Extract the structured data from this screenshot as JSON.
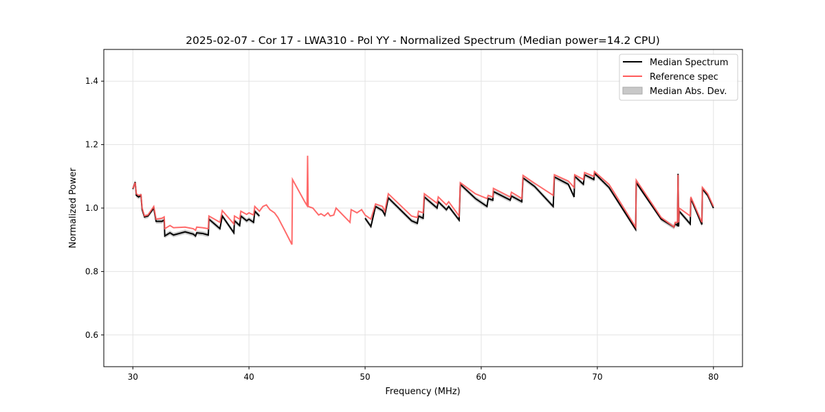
{
  "chart_data": {
    "type": "line",
    "title": "2025-02-07 - Cor 17 - LWA310 - Pol YY - Normalized Spectrum (Median power=14.2 CPU)",
    "xlabel": "Frequency (MHz)",
    "ylabel": "Normalized Power",
    "xlim": [
      27.5,
      82.5
    ],
    "ylim": [
      0.5,
      1.5
    ],
    "xticks": [
      30,
      40,
      50,
      60,
      70,
      80
    ],
    "xtick_labels": [
      "30",
      "40",
      "50",
      "60",
      "70",
      "80"
    ],
    "yticks": [
      0.6,
      0.8,
      1.0,
      1.2,
      1.4
    ],
    "ytick_labels": [
      "0.6",
      "0.8",
      "1.0",
      "1.2",
      "1.4"
    ],
    "grid": true,
    "legend_position": "top-right",
    "legend": [
      "Median Spectrum",
      "Reference spec",
      "Median Abs. Dev."
    ],
    "colors": {
      "median": "#000000",
      "reference": "#ff5a5a",
      "mad": "#bdbdbd"
    },
    "mad_halfwidth": 0.007,
    "series": [
      {
        "name": "Reference spec",
        "points": [
          [
            30.0,
            1.062
          ],
          [
            30.2,
            1.08
          ],
          [
            30.3,
            1.045
          ],
          [
            30.5,
            1.04
          ],
          [
            30.7,
            1.042
          ],
          [
            30.8,
            1.0
          ],
          [
            31.0,
            0.975
          ],
          [
            31.3,
            0.978
          ],
          [
            31.8,
            1.005
          ],
          [
            32.0,
            0.965
          ],
          [
            32.5,
            0.968
          ],
          [
            32.7,
            0.972
          ],
          [
            32.75,
            0.935
          ],
          [
            33.2,
            0.945
          ],
          [
            33.5,
            0.938
          ],
          [
            34.5,
            0.94
          ],
          [
            35.2,
            0.935
          ],
          [
            35.4,
            0.93
          ],
          [
            35.5,
            0.94
          ],
          [
            36.0,
            0.938
          ],
          [
            36.5,
            0.935
          ],
          [
            36.55,
            0.975
          ],
          [
            37.5,
            0.955
          ],
          [
            37.7,
            0.992
          ],
          [
            38.7,
            0.95
          ],
          [
            38.75,
            0.975
          ],
          [
            39.2,
            0.965
          ],
          [
            39.3,
            0.99
          ],
          [
            39.8,
            0.98
          ],
          [
            40.0,
            0.985
          ],
          [
            40.4,
            0.978
          ],
          [
            40.5,
            1.005
          ],
          [
            40.9,
            0.99
          ],
          [
            41.2,
            1.005
          ],
          [
            41.5,
            1.01
          ],
          [
            41.8,
            0.995
          ],
          [
            42.2,
            0.985
          ],
          [
            42.5,
            0.97
          ],
          [
            43.0,
            0.935
          ],
          [
            43.7,
            0.885
          ],
          [
            43.75,
            1.09
          ],
          [
            44.8,
            1.02
          ],
          [
            45.0,
            1.008
          ],
          [
            45.05,
            1.165
          ],
          [
            45.1,
            1.005
          ],
          [
            45.5,
            1.0
          ],
          [
            46.0,
            0.978
          ],
          [
            46.2,
            0.982
          ],
          [
            46.5,
            0.975
          ],
          [
            46.8,
            0.985
          ],
          [
            47.0,
            0.975
          ],
          [
            47.3,
            0.978
          ],
          [
            47.5,
            1.0
          ],
          [
            48.7,
            0.955
          ],
          [
            48.8,
            0.995
          ],
          [
            49.3,
            0.985
          ],
          [
            49.7,
            0.995
          ],
          [
            50.0,
            0.978
          ],
          [
            50.5,
            0.965
          ],
          [
            50.9,
            1.013
          ],
          [
            51.5,
            1.005
          ],
          [
            51.7,
            0.99
          ],
          [
            52.0,
            1.045
          ],
          [
            54.0,
            0.975
          ],
          [
            54.5,
            0.97
          ],
          [
            54.6,
            0.99
          ],
          [
            55.0,
            0.985
          ],
          [
            55.1,
            1.045
          ],
          [
            56.2,
            1.015
          ],
          [
            56.3,
            1.035
          ],
          [
            57.0,
            1.01
          ],
          [
            57.2,
            1.02
          ],
          [
            58.1,
            0.975
          ],
          [
            58.2,
            1.08
          ],
          [
            59.5,
            1.045
          ],
          [
            60.5,
            1.03
          ],
          [
            60.6,
            1.04
          ],
          [
            61.0,
            1.035
          ],
          [
            61.05,
            1.062
          ],
          [
            62.5,
            1.035
          ],
          [
            62.6,
            1.05
          ],
          [
            63.5,
            1.03
          ],
          [
            63.6,
            1.103
          ],
          [
            64.6,
            1.078
          ],
          [
            66.2,
            1.04
          ],
          [
            66.3,
            1.105
          ],
          [
            67.5,
            1.085
          ],
          [
            68.0,
            1.065
          ],
          [
            68.05,
            1.105
          ],
          [
            68.8,
            1.09
          ],
          [
            68.9,
            1.112
          ],
          [
            69.7,
            1.1
          ],
          [
            69.75,
            1.115
          ],
          [
            71.0,
            1.075
          ],
          [
            73.3,
            0.94
          ],
          [
            73.35,
            1.088
          ],
          [
            75.5,
            0.97
          ],
          [
            76.6,
            0.94
          ],
          [
            76.7,
            0.955
          ],
          [
            76.9,
            0.955
          ],
          [
            76.95,
            1.105
          ],
          [
            77.0,
            0.955
          ],
          [
            77.05,
            1.0
          ],
          [
            78.0,
            0.975
          ],
          [
            78.05,
            1.035
          ],
          [
            79.0,
            0.955
          ],
          [
            79.05,
            1.065
          ],
          [
            79.5,
            1.045
          ],
          [
            80.0,
            1.005
          ]
        ]
      },
      {
        "name": "Median Spectrum",
        "points": [
          [
            30.0,
            1.06
          ],
          [
            30.2,
            1.082
          ],
          [
            30.3,
            1.04
          ],
          [
            30.5,
            1.035
          ],
          [
            30.7,
            1.04
          ],
          [
            30.8,
            0.995
          ],
          [
            31.0,
            0.972
          ],
          [
            31.3,
            0.975
          ],
          [
            31.8,
            1.0
          ],
          [
            32.0,
            0.958
          ],
          [
            32.5,
            0.958
          ],
          [
            32.7,
            0.962
          ],
          [
            32.75,
            0.912
          ],
          [
            33.2,
            0.922
          ],
          [
            33.5,
            0.915
          ],
          [
            34.5,
            0.925
          ],
          [
            35.2,
            0.918
          ],
          [
            35.4,
            0.912
          ],
          [
            35.5,
            0.922
          ],
          [
            36.0,
            0.92
          ],
          [
            36.5,
            0.915
          ],
          [
            36.55,
            0.965
          ],
          [
            37.5,
            0.935
          ],
          [
            37.7,
            0.975
          ],
          [
            38.7,
            0.922
          ],
          [
            38.75,
            0.96
          ],
          [
            39.2,
            0.945
          ],
          [
            39.3,
            0.975
          ],
          [
            39.8,
            0.96
          ],
          [
            40.0,
            0.965
          ],
          [
            40.4,
            0.955
          ],
          [
            40.5,
            0.99
          ],
          [
            40.9,
            0.975
          ],
          [
            41.2,
            null
          ],
          [
            50.0,
            0.968
          ],
          [
            50.5,
            0.942
          ],
          [
            50.9,
            1.005
          ],
          [
            51.5,
            0.992
          ],
          [
            51.7,
            0.978
          ],
          [
            52.0,
            1.032
          ],
          [
            54.0,
            0.96
          ],
          [
            54.5,
            0.952
          ],
          [
            54.6,
            0.975
          ],
          [
            55.0,
            0.968
          ],
          [
            55.1,
            1.035
          ],
          [
            56.2,
            1.0
          ],
          [
            56.3,
            1.02
          ],
          [
            57.0,
            0.995
          ],
          [
            57.2,
            1.005
          ],
          [
            58.1,
            0.962
          ],
          [
            58.2,
            1.075
          ],
          [
            59.5,
            1.03
          ],
          [
            60.5,
            1.005
          ],
          [
            60.6,
            1.03
          ],
          [
            61.0,
            1.025
          ],
          [
            61.05,
            1.052
          ],
          [
            62.5,
            1.025
          ],
          [
            62.6,
            1.038
          ],
          [
            63.5,
            1.02
          ],
          [
            63.6,
            1.095
          ],
          [
            64.6,
            1.068
          ],
          [
            66.2,
            1.005
          ],
          [
            66.3,
            1.098
          ],
          [
            67.5,
            1.075
          ],
          [
            68.0,
            1.035
          ],
          [
            68.05,
            1.1
          ],
          [
            68.8,
            1.075
          ],
          [
            68.9,
            1.105
          ],
          [
            69.7,
            1.09
          ],
          [
            69.75,
            1.11
          ],
          [
            71.0,
            1.065
          ],
          [
            73.3,
            0.933
          ],
          [
            73.35,
            1.08
          ],
          [
            75.5,
            0.965
          ],
          [
            76.6,
            0.94
          ],
          [
            76.7,
            0.95
          ],
          [
            76.9,
            0.945
          ],
          [
            76.95,
            1.108
          ],
          [
            77.0,
            0.942
          ],
          [
            77.05,
            0.99
          ],
          [
            78.0,
            0.95
          ],
          [
            78.05,
            1.03
          ],
          [
            79.0,
            0.948
          ],
          [
            79.05,
            1.06
          ],
          [
            79.5,
            1.04
          ],
          [
            80.0,
            1.0
          ]
        ]
      }
    ]
  }
}
